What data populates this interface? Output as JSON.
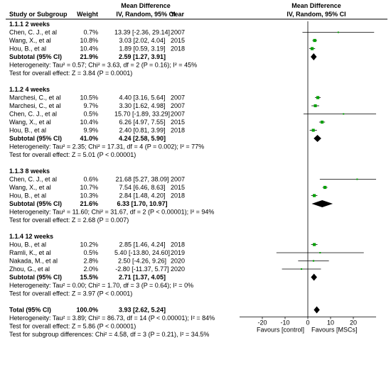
{
  "header": {
    "md_title": "Mean Difference",
    "col_study": "Study or Subgroup",
    "col_weight": "Weight",
    "col_ci": "IV, Random, 95% CI",
    "col_year": "Year",
    "plot_title": "Mean Difference",
    "plot_subtitle": "IV, Random, 95% CI"
  },
  "axis": {
    "xlim": [
      -30,
      30
    ],
    "ticks": [
      -20,
      -10,
      0,
      10,
      20
    ],
    "tick_labels": [
      "-20",
      "-10",
      "0",
      "10",
      "20"
    ],
    "left_label": "Favours [control]",
    "right_label": "Favours [MSCs]"
  },
  "colors": {
    "study_marker": "#00a000",
    "diamond": "#000000",
    "line": "#000000"
  },
  "chart_data": {
    "type": "forest",
    "groups": [
      {
        "title": "1.1.1 2 weeks",
        "studies": [
          {
            "study": "Chen, C. J., et al",
            "weight": "0.7%",
            "ci_text": "13.39 [-2.36, 29.14]",
            "year": "2007",
            "md": 13.39,
            "lo": -2.36,
            "hi": 29.14
          },
          {
            "study": "Wang, X., et al",
            "weight": "10.8%",
            "ci_text": "3.03 [2.02, 4.04]",
            "year": "2015",
            "md": 3.03,
            "lo": 2.02,
            "hi": 4.04
          },
          {
            "study": "Hou, B., et al",
            "weight": "10.4%",
            "ci_text": "1.89 [0.59, 3.19]",
            "year": "2018",
            "md": 1.89,
            "lo": 0.59,
            "hi": 3.19
          }
        ],
        "subtotal": {
          "label": "Subtotal (95% CI)",
          "weight": "21.9%",
          "ci_text": "2.59 [1.27, 3.91]",
          "md": 2.59,
          "lo": 1.27,
          "hi": 3.91
        },
        "heterogeneity": "Heterogeneity: Tau² = 0.57; Chi² = 3.63, df = 2 (P = 0.16); I² = 45%",
        "overall_effect": "Test for overall effect: Z = 3.84 (P = 0.0001)"
      },
      {
        "title": "1.1.2 4 weeks",
        "studies": [
          {
            "study": "Marchesi, C., et al",
            "weight": "10.5%",
            "ci_text": "4.40 [3.16, 5.64]",
            "year": "2007",
            "md": 4.4,
            "lo": 3.16,
            "hi": 5.64
          },
          {
            "study": "Marchesi, C., et al",
            "weight": "9.7%",
            "ci_text": "3.30 [1.62, 4.98]",
            "year": "2007",
            "md": 3.3,
            "lo": 1.62,
            "hi": 4.98
          },
          {
            "study": "Chen, C. J., et al",
            "weight": "0.5%",
            "ci_text": "15.70 [-1.89, 33.29]",
            "year": "2007",
            "md": 15.7,
            "lo": -1.89,
            "hi": 33.29
          },
          {
            "study": "Wang, X., et al",
            "weight": "10.4%",
            "ci_text": "6.26 [4.97, 7.55]",
            "year": "2015",
            "md": 6.26,
            "lo": 4.97,
            "hi": 7.55
          },
          {
            "study": "Hou, B., et al",
            "weight": "9.9%",
            "ci_text": "2.40 [0.81, 3.99]",
            "year": "2018",
            "md": 2.4,
            "lo": 0.81,
            "hi": 3.99
          }
        ],
        "subtotal": {
          "label": "Subtotal (95% CI)",
          "weight": "41.0%",
          "ci_text": "4.24 [2.58, 5.90]",
          "md": 4.24,
          "lo": 2.58,
          "hi": 5.9
        },
        "heterogeneity": "Heterogeneity: Tau² = 2.35; Chi² = 17.31, df = 4 (P = 0.002); I² = 77%",
        "overall_effect": "Test for overall effect: Z = 5.01 (P < 0.00001)"
      },
      {
        "title": "1.1.3 8 weeks",
        "studies": [
          {
            "study": "Chen, C. J., et al",
            "weight": "0.6%",
            "ci_text": "21.68 [5.27, 38.09]",
            "year": "2007",
            "md": 21.68,
            "lo": 5.27,
            "hi": 38.09
          },
          {
            "study": "Wang, X., et al",
            "weight": "10.7%",
            "ci_text": "7.54 [6.46, 8.63]",
            "year": "2015",
            "md": 7.54,
            "lo": 6.46,
            "hi": 8.63
          },
          {
            "study": "Hou, B., et al",
            "weight": "10.3%",
            "ci_text": "2.84 [1.48, 4.20]",
            "year": "2018",
            "md": 2.84,
            "lo": 1.48,
            "hi": 4.2
          }
        ],
        "subtotal": {
          "label": "Subtotal (95% CI)",
          "weight": "21.6%",
          "ci_text": "6.33 [1.70, 10.97]",
          "md": 6.33,
          "lo": 1.7,
          "hi": 10.97
        },
        "heterogeneity": "Heterogeneity: Tau² = 11.60; Chi² = 31.67, df = 2 (P < 0.00001); I² = 94%",
        "overall_effect": "Test for overall effect: Z = 2.68 (P = 0.007)"
      },
      {
        "title": "1.1.4 12 weeks",
        "studies": [
          {
            "study": "Hou, B., et al",
            "weight": "10.2%",
            "ci_text": "2.85 [1.46, 4.24]",
            "year": "2018",
            "md": 2.85,
            "lo": 1.46,
            "hi": 4.24
          },
          {
            "study": "Ramli, K., et al",
            "weight": "0.5%",
            "ci_text": "5.40 [-13.80, 24.60]",
            "year": "2019",
            "md": 5.4,
            "lo": -13.8,
            "hi": 24.6
          },
          {
            "study": "Nakada, M., et al",
            "weight": "2.8%",
            "ci_text": "2.50 [-4.26, 9.26]",
            "year": "2020",
            "md": 2.5,
            "lo": -4.26,
            "hi": 9.26
          },
          {
            "study": "Zhou, G., et al",
            "weight": "2.0%",
            "ci_text": "-2.80 [-11.37, 5.77]",
            "year": "2020",
            "md": -2.8,
            "lo": -11.37,
            "hi": 5.77
          }
        ],
        "subtotal": {
          "label": "Subtotal (95% CI)",
          "weight": "15.5%",
          "ci_text": "2.71 [1.37, 4.05]",
          "md": 2.71,
          "lo": 1.37,
          "hi": 4.05
        },
        "heterogeneity": "Heterogeneity: Tau² = 0.00; Chi² = 1.70, df = 3 (P = 0.64); I² = 0%",
        "overall_effect": "Test for overall effect: Z = 3.97 (P < 0.0001)"
      }
    ],
    "total": {
      "label": "Total (95% CI)",
      "weight": "100.0%",
      "ci_text": "3.93 [2.62, 5.24]",
      "md": 3.93,
      "lo": 2.62,
      "hi": 5.24
    },
    "footer": [
      "Heterogeneity: Tau² = 3.89; Chi² = 86.73, df = 14 (P < 0.00001); I² = 84%",
      "Test for overall effect: Z = 5.86 (P < 0.00001)",
      "Test for subgroup differences: Chi² = 4.58, df = 3 (P = 0.21), I² = 34.5%"
    ]
  }
}
